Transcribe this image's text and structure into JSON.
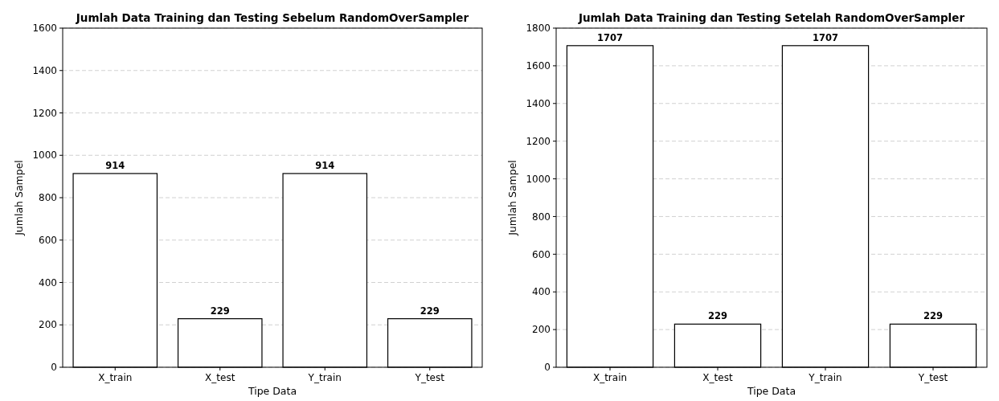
{
  "chart_data": [
    {
      "type": "bar",
      "title": "Jumlah Data Training dan Testing Sebelum RandomOverSampler",
      "xlabel": "Tipe Data",
      "ylabel": "Jumlah Sampel",
      "categories": [
        "X_train",
        "X_test",
        "Y_train",
        "Y_test"
      ],
      "values": [
        914,
        229,
        914,
        229
      ],
      "color": "#ffffff",
      "ylim": [
        0,
        1600
      ],
      "yticks": [
        0,
        200,
        400,
        600,
        800,
        1000,
        1200,
        1400,
        1600
      ],
      "grid": "y",
      "data_labels": true
    },
    {
      "type": "bar",
      "title": "Jumlah Data Training dan Testing Setelah RandomOverSampler",
      "xlabel": "Tipe Data",
      "ylabel": "Jumlah Sampel",
      "categories": [
        "X_train",
        "X_test",
        "Y_train",
        "Y_test"
      ],
      "values": [
        1707,
        229,
        1707,
        229
      ],
      "color": "#ffffff",
      "ylim": [
        0,
        1800
      ],
      "yticks": [
        0,
        200,
        400,
        600,
        800,
        1000,
        1200,
        1400,
        1600,
        1800
      ],
      "grid": "y",
      "data_labels": true
    }
  ]
}
